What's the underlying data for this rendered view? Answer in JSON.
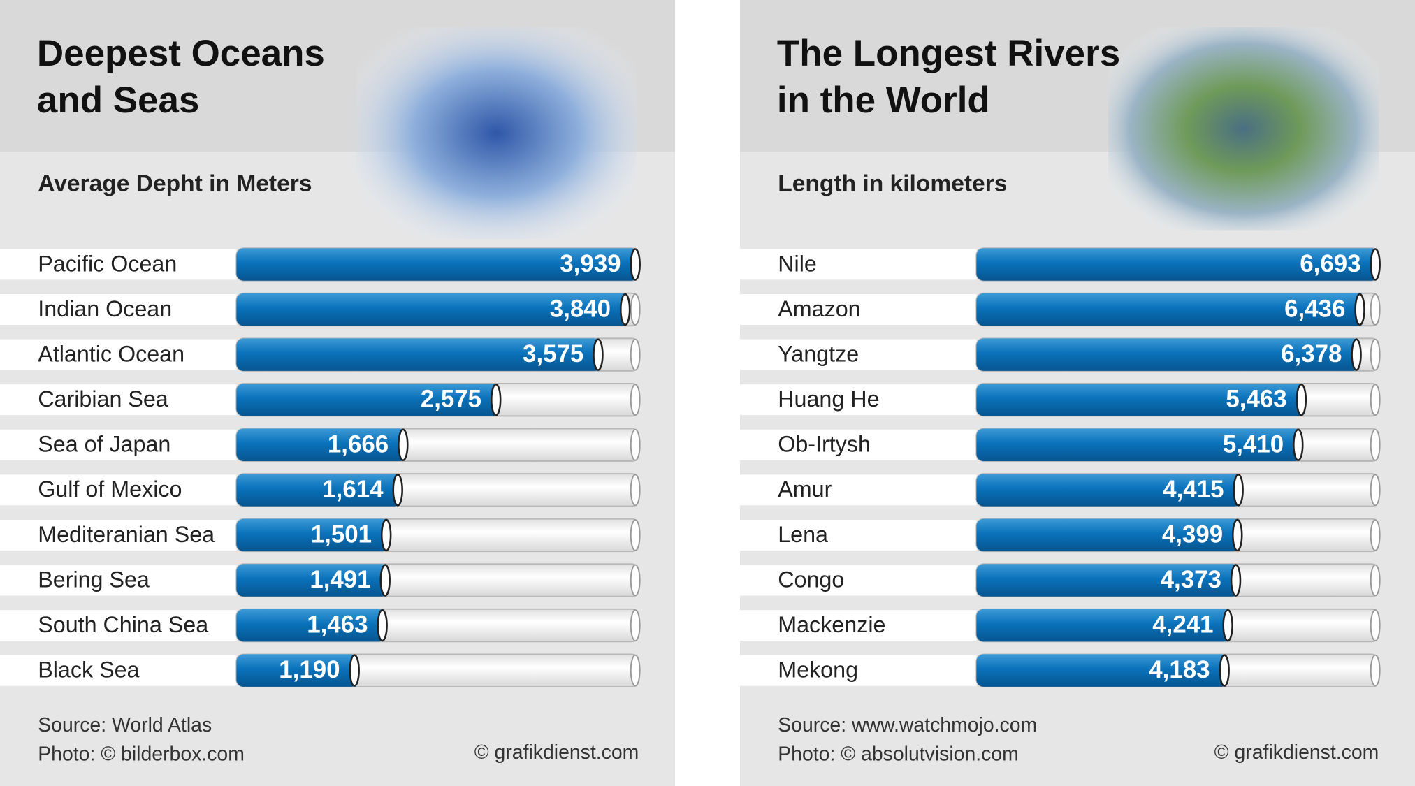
{
  "chart_data": [
    {
      "type": "bar",
      "orientation": "horizontal",
      "title": [
        "Deepest Oceans",
        "and Seas"
      ],
      "subtitle": "Average Depht in Meters",
      "categories": [
        "Pacific Ocean",
        "Indian Ocean",
        "Atlantic Ocean",
        "Caribian Sea",
        "Sea of Japan",
        "Gulf of Mexico",
        "Mediteranian Sea",
        "Bering Sea",
        "South China Sea",
        "Black Sea"
      ],
      "values": [
        3939,
        3840,
        3575,
        2575,
        1666,
        1614,
        1501,
        1491,
        1463,
        1190
      ],
      "value_labels": [
        "3,939",
        "3,840",
        "3,575",
        "2,575",
        "1,666",
        "1,614",
        "1,501",
        "1,491",
        "1,463",
        "1,190"
      ],
      "color": "#0a72bb",
      "source": "Source: World Atlas",
      "photo": "Photo: © bilderbox.com",
      "credit": "© grafikdienst.com"
    },
    {
      "type": "bar",
      "orientation": "horizontal",
      "title": [
        "The Longest Rivers",
        "in the World"
      ],
      "subtitle": "Length in kilometers",
      "categories": [
        "Nile",
        "Amazon",
        "Yangtze",
        "Huang He",
        "Ob-Irtysh",
        "Amur",
        "Lena",
        "Congo",
        "Mackenzie",
        "Mekong"
      ],
      "values": [
        6693,
        6436,
        6378,
        5463,
        5410,
        4415,
        4399,
        4373,
        4241,
        4183
      ],
      "value_labels": [
        "6,693",
        "6,436",
        "6,378",
        "5,463",
        "5,410",
        "4,415",
        "4,399",
        "4,373",
        "4,241",
        "4,183"
      ],
      "color": "#0a72bb",
      "source": "Source: www.watchmojo.com",
      "photo": "Photo: © absolutvision.com",
      "credit": "© grafikdienst.com"
    }
  ]
}
